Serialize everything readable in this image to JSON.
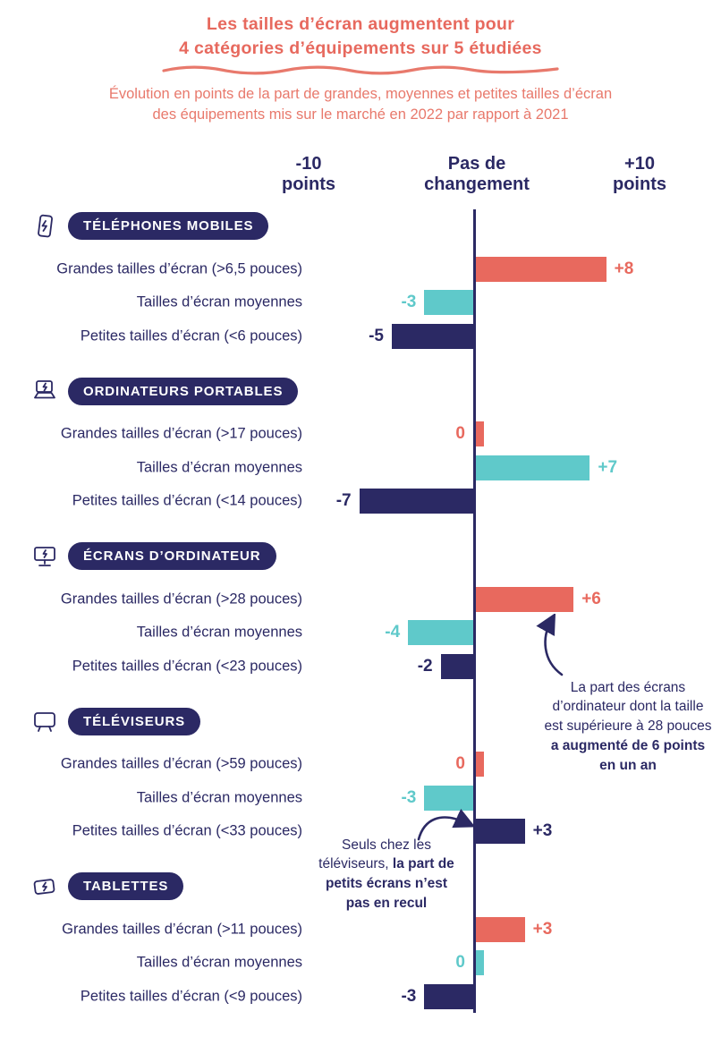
{
  "header": {
    "title_lines": [
      "Les tailles d’écran augmentent pour",
      "4 catégories d’équipements sur 5 étudiées"
    ],
    "subtitle_lines": [
      "Évolution en points de la part de grandes, moyennes et petites tailles d’écran",
      "des équipements mis sur le marché en 2022 par rapport à 2021"
    ]
  },
  "axis": {
    "left": [
      "-10",
      "points"
    ],
    "center": [
      "Pas de",
      "changement"
    ],
    "right": [
      "+10",
      "points"
    ]
  },
  "colors": {
    "coral": "#e8695e",
    "teal": "#5fc9ca",
    "navy": "#2b2964"
  },
  "chart_data": {
    "type": "bar",
    "orientation": "horizontal",
    "unit": "points",
    "x_range": [
      -10,
      10
    ],
    "zero_label": "Pas de changement",
    "groups": [
      {
        "category": "TÉLÉPHONES MOBILES",
        "icon": "mobile-phone-icon",
        "rows": [
          {
            "label": "Grandes tailles d’écran (>6,5 pouces)",
            "value": 8,
            "display": "+8",
            "color": "coral"
          },
          {
            "label": "Tailles d’écran moyennes",
            "value": -3,
            "display": "-3",
            "color": "teal"
          },
          {
            "label": "Petites tailles d’écran (<6 pouces)",
            "value": -5,
            "display": "-5",
            "color": "navy"
          }
        ]
      },
      {
        "category": "ORDINATEURS PORTABLES",
        "icon": "laptop-icon",
        "rows": [
          {
            "label": "Grandes tailles d’écran (>17 pouces)",
            "value": 0,
            "display": "0",
            "color": "coral"
          },
          {
            "label": "Tailles d’écran moyennes",
            "value": 7,
            "display": "+7",
            "color": "teal"
          },
          {
            "label": "Petites tailles d’écran (<14 pouces)",
            "value": -7,
            "display": "-7",
            "color": "navy"
          }
        ]
      },
      {
        "category": "ÉCRANS D’ORDINATEUR",
        "icon": "monitor-icon",
        "rows": [
          {
            "label": "Grandes tailles d’écran (>28 pouces)",
            "value": 6,
            "display": "+6",
            "color": "coral"
          },
          {
            "label": "Tailles d’écran moyennes",
            "value": -4,
            "display": "-4",
            "color": "teal"
          },
          {
            "label": "Petites tailles d’écran (<23 pouces)",
            "value": -2,
            "display": "-2",
            "color": "navy"
          }
        ]
      },
      {
        "category": "TÉLÉVISEURS",
        "icon": "tv-icon",
        "rows": [
          {
            "label": "Grandes tailles d’écran (>59 pouces)",
            "value": 0,
            "display": "0",
            "color": "coral"
          },
          {
            "label": "Tailles d’écran moyennes",
            "value": -3,
            "display": "-3",
            "color": "teal"
          },
          {
            "label": "Petites tailles d’écran (<33 pouces)",
            "value": 3,
            "display": "+3",
            "color": "navy"
          }
        ]
      },
      {
        "category": "TABLETTES",
        "icon": "tablet-icon",
        "rows": [
          {
            "label": "Grandes tailles d’écran (>11 pouces)",
            "value": 3,
            "display": "+3",
            "color": "coral"
          },
          {
            "label": "Tailles d’écran moyennes",
            "value": 0,
            "display": "0",
            "color": "teal"
          },
          {
            "label": "Petites tailles d’écran (<9 pouces)",
            "value": -3,
            "display": "-3",
            "color": "navy"
          }
        ]
      }
    ]
  },
  "annotations": [
    {
      "plain": "La part des écrans d’ordinateur dont la taille est supérieure à 28 pouces",
      "bold": "a augmenté de 6 points en un an"
    },
    {
      "plain": "Seuls chez les téléviseurs,",
      "bold": "la part de petits écrans n’est pas en recul"
    }
  ]
}
